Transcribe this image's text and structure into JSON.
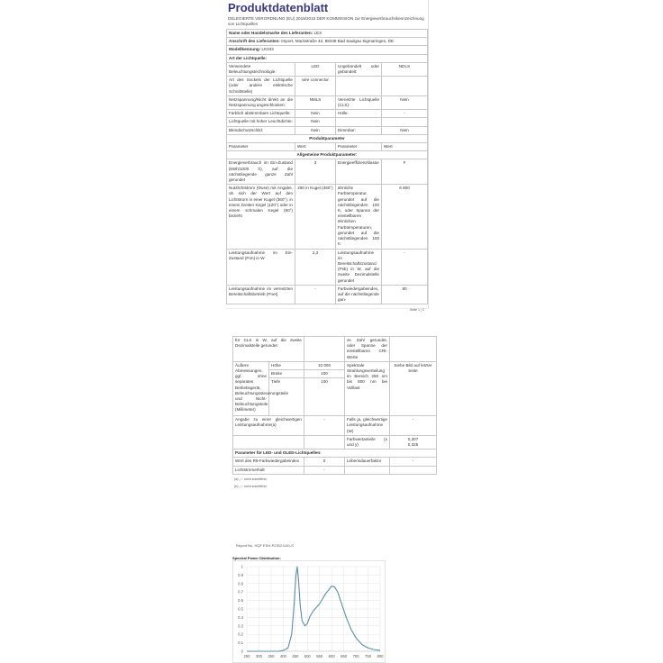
{
  "page1": {
    "title": "Produktdatenblatt",
    "regulation": "DELEGIERTE VERORDNUNG (EU) 2019/2015 DER KOMMISSION zur Energieverbrauchskennzeichnung von Lichtquellen",
    "supplier_label": "Name oder Handelsmarke des Lieferanten:",
    "supplier": "LEX",
    "address_label": "Anschrift des Lieferanten:",
    "address": "Import, Mackstraße 42, 88348 Bad Saulgau Sigmaringen, DE",
    "model_label": "Modellkennung:",
    "model": "LK043",
    "type_label": "Art der Lichtquelle:",
    "rows": [
      [
        "Verwendete Beleuchtungstechnologie:",
        "LED",
        "Ungebündelt oder gebündelt:",
        "NDLS"
      ],
      [
        "Art des Sockels der Lichtquelle (oder andere elektrische Schnittstelle)",
        "wire connector",
        "",
        ""
      ],
      [
        "Netzspannung/Nicht direkt an die Netzspannung angeschlossen:",
        "NMLS",
        "Vernetzte Lichtquelle (CLS):",
        "Nein"
      ],
      [
        "Farblich abstimmbare Lichtquelle:",
        "Nein",
        "Hülle:",
        "-"
      ],
      [
        "Lichtquelle mit hoher Leuchtdichte:",
        "Nein",
        "",
        ""
      ],
      [
        "Blendschutzschild:",
        "Nein",
        "Dimmbar:",
        "Nein"
      ]
    ],
    "product_params": "Produktparameter",
    "headers": [
      "Parameter",
      "Wert",
      "Parameter",
      "Wert"
    ],
    "general": "Allgemeine Produktparameter:",
    "params": [
      [
        "Energieverbrauch im Ein-Zustand (kWh/1000 h), auf die nächstliegende ganze Zahl gerundet",
        "3",
        "Energieeffizienzklasse",
        "F"
      ],
      [
        "Nutzlichtstrom (Φuse) mit Angabe, ob sich der Wert auf den Lichtstrom in einer Kugel (360°), in einem breiten Kegel (120°) oder in einem schmalen Kegel (90°) bezieht",
        "250 in Kugel (360°)",
        "ähnliche Farbtemperatur, gerundet auf die nächstliegenden 100 K, oder Spanne der einstellbaren ähnlichen Farbtemperaturen, gerundet auf die nächstliegenden 100 K",
        "6 800"
      ],
      [
        "Leistungsaufnahme im Ein-Zustand (Pon) in W",
        "2,3",
        "Leistungsaufnahme im Bereitschaftszustand (Psb) in W, auf die zweite Dezimalstelle gerundet",
        "-"
      ],
      [
        "Leistungsaufnahme im vernetzten Bereitschaftsbetrieb (Pnet)",
        "-",
        "Farbwiedergabeindex, auf die nächstliegende gan-",
        "80"
      ]
    ],
    "page_number": "Seite 1 | 3"
  },
  "page2": {
    "cont": [
      "für CLS in W, auf die zweite Dezimalstelle gerundet",
      "",
      "ze Zahl gerundet, oder Spanne der einstellbaren CRI-Werte",
      ""
    ],
    "dims_label": "Äußere Abmessungen, ggf. ohne separates Betriebsgerät, Beleuchtungssteuerungsteile und Nicht-Beleuchtungsteile (Millimeter)",
    "dims": [
      [
        "Höhe",
        "10 000"
      ],
      [
        "Breite",
        "100"
      ],
      [
        "Tiefe",
        "100"
      ]
    ],
    "spectral_label": "Spektrale Strahlungsverteilung im Bereich 250 nm bis 800 nm bei Volllast",
    "spectral_value": "Siehe Bild auf letzter Seite",
    "equiv": [
      "Angabe zu einer gleichwertigen Leistungsaufnahme(a)",
      "-",
      "Falls ja, gleichwertige Leistungsaufnahme (W)",
      "-"
    ],
    "chroma": [
      "",
      "",
      "Farbwertanteile (x und y)",
      "0,307\n0,325"
    ],
    "led_header": "Parameter für LED- und OLED-Lichtquellen:",
    "led": [
      [
        "Wert des R9-Farbwiedergabeindex",
        "0",
        "Lebensdauerfaktor",
        "-"
      ],
      [
        "Lichtstromerhalt",
        "-",
        "",
        ""
      ]
    ],
    "notes": [
      "(a) „-“: nicht zutreffend;",
      "(b) „-“: nicht zutreffend;"
    ]
  },
  "page3": {
    "report": "Report No. HQF ESH-P23021140-S",
    "chart_title": "Spectral Power Distribution:",
    "chart_data": {
      "type": "line",
      "title": "Spectral Power Distribution:",
      "xlabel": "",
      "ylabel": "",
      "xlim": [
        250,
        800
      ],
      "ylim": [
        0,
        1
      ],
      "grid": true,
      "xticks": [
        250,
        300,
        350,
        400,
        450,
        500,
        550,
        600,
        650,
        700,
        750,
        800
      ],
      "yticks": [
        0,
        0.1,
        0.2,
        0.3,
        0.4,
        0.5,
        0.6,
        0.7,
        0.8,
        0.9,
        1
      ],
      "color": "#5b8fa8",
      "x": [
        250,
        300,
        350,
        380,
        400,
        420,
        435,
        445,
        452,
        458,
        463,
        470,
        478,
        490,
        500,
        510,
        525,
        550,
        575,
        600,
        612,
        625,
        640,
        660,
        680,
        700,
        725,
        750,
        775,
        800
      ],
      "y": [
        0,
        0,
        0,
        0,
        0.01,
        0.04,
        0.2,
        0.55,
        0.88,
        1.0,
        0.85,
        0.55,
        0.36,
        0.3,
        0.33,
        0.41,
        0.48,
        0.56,
        0.68,
        0.77,
        0.76,
        0.7,
        0.57,
        0.4,
        0.26,
        0.16,
        0.08,
        0.04,
        0.02,
        0.01
      ]
    }
  }
}
